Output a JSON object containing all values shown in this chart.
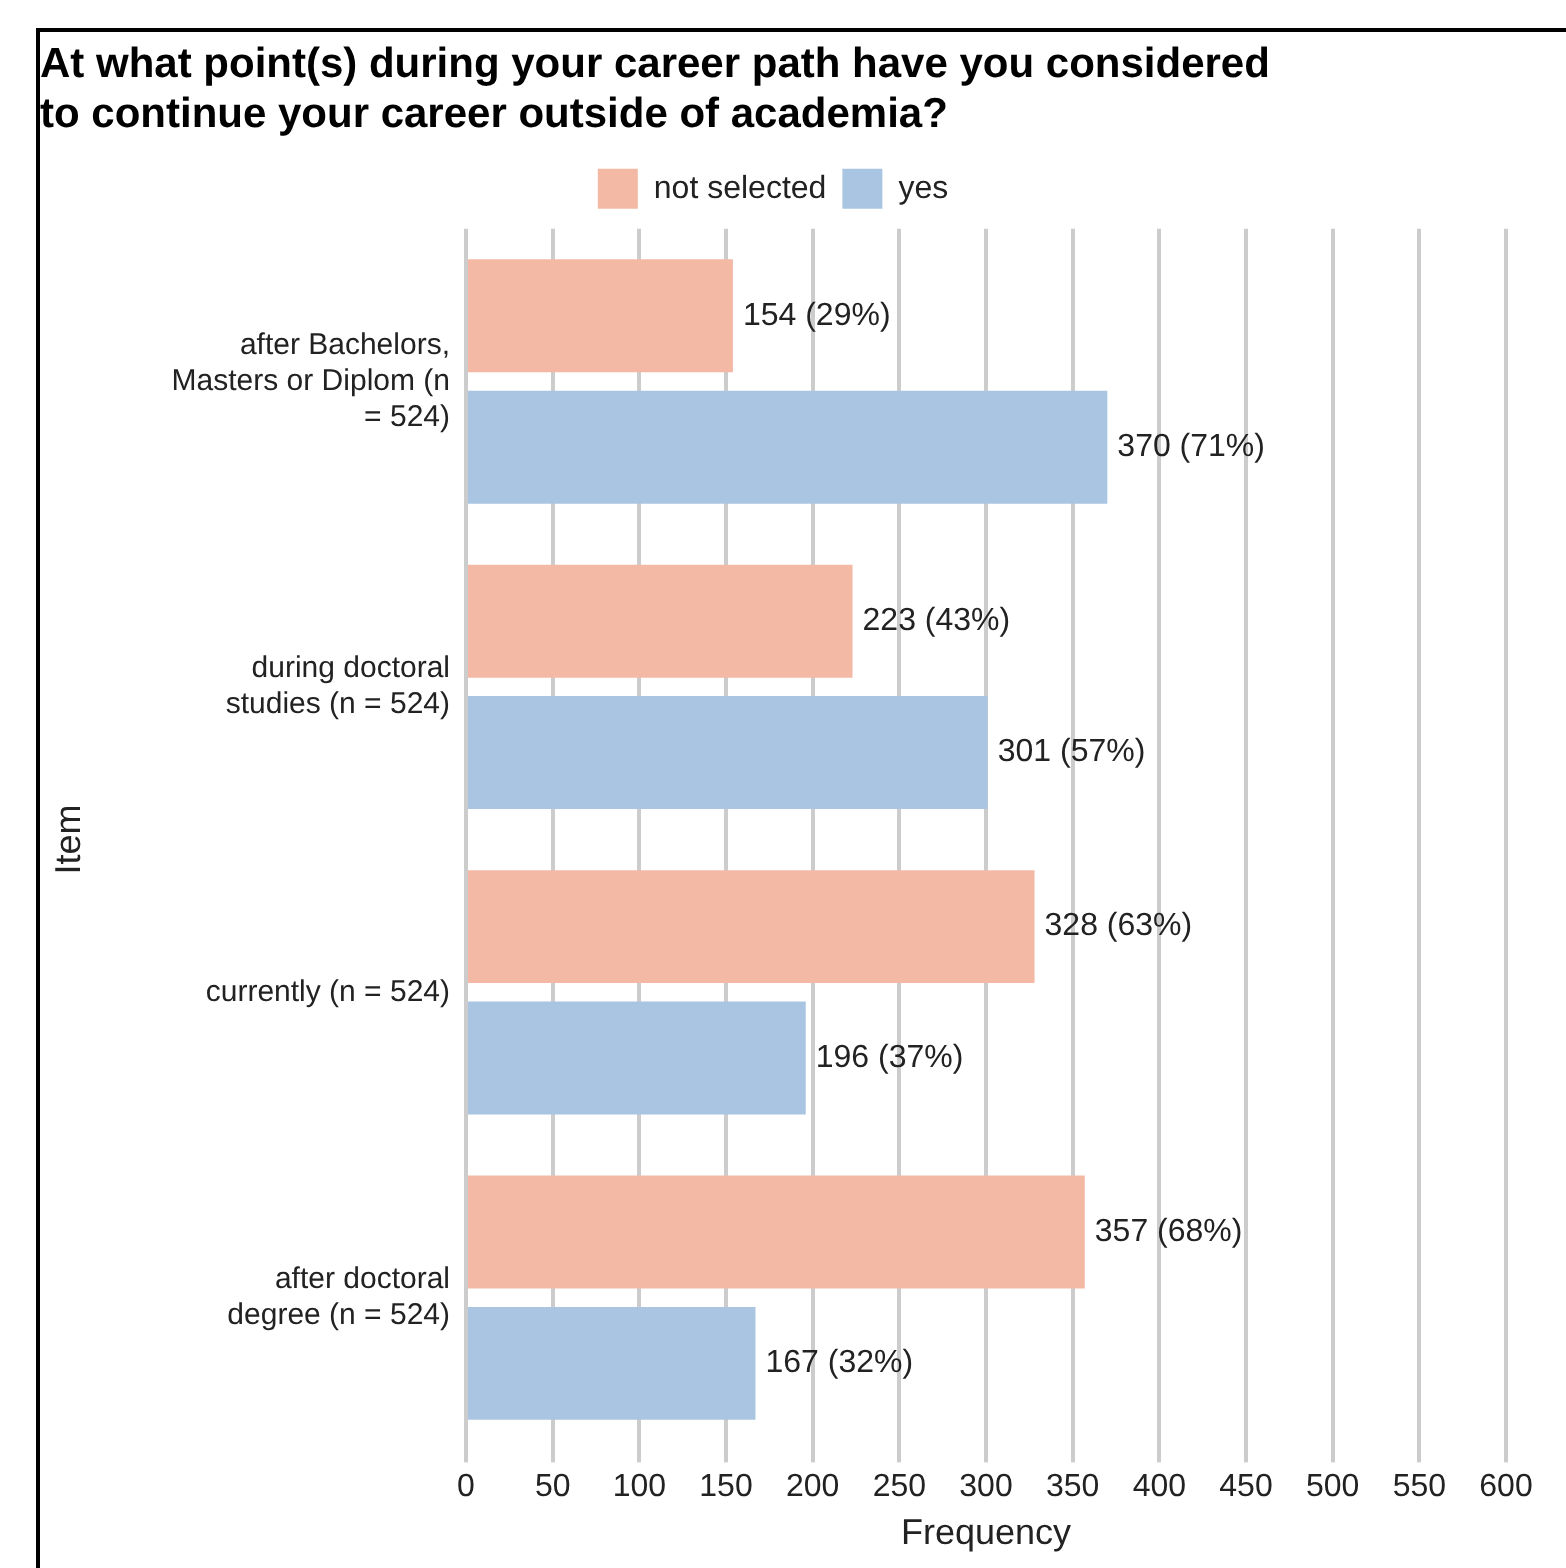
{
  "chart_data": {
    "type": "bar",
    "orientation": "horizontal",
    "title": "At what point(s) during your career path have you considered\nto continue your career outside of academia?",
    "xlabel": "Frequency",
    "ylabel": "Item",
    "categories": [
      "after Bachelors, Masters or Diplom (n = 524)",
      "during doctoral studies (n = 524)",
      "currently (n = 524)",
      "after doctoral degree (n = 524)"
    ],
    "series": [
      {
        "name": "not selected",
        "color": "#f4b9a5",
        "values": [
          154,
          223,
          328,
          357
        ],
        "value_labels": [
          "154 (29%)",
          "223 (43%)",
          "328 (63%)",
          "357 (68%)"
        ]
      },
      {
        "name": "yes",
        "color": "#aac5e2",
        "values": [
          370,
          301,
          196,
          167
        ],
        "value_labels": [
          "370 (71%)",
          "301 (57%)",
          "196 (37%)",
          "167 (32%)"
        ]
      }
    ],
    "xlim": [
      0,
      600
    ],
    "xticks": [
      0,
      50,
      100,
      150,
      200,
      250,
      300,
      350,
      400,
      450,
      500,
      550,
      600
    ],
    "grid": "x",
    "legend": "top"
  }
}
